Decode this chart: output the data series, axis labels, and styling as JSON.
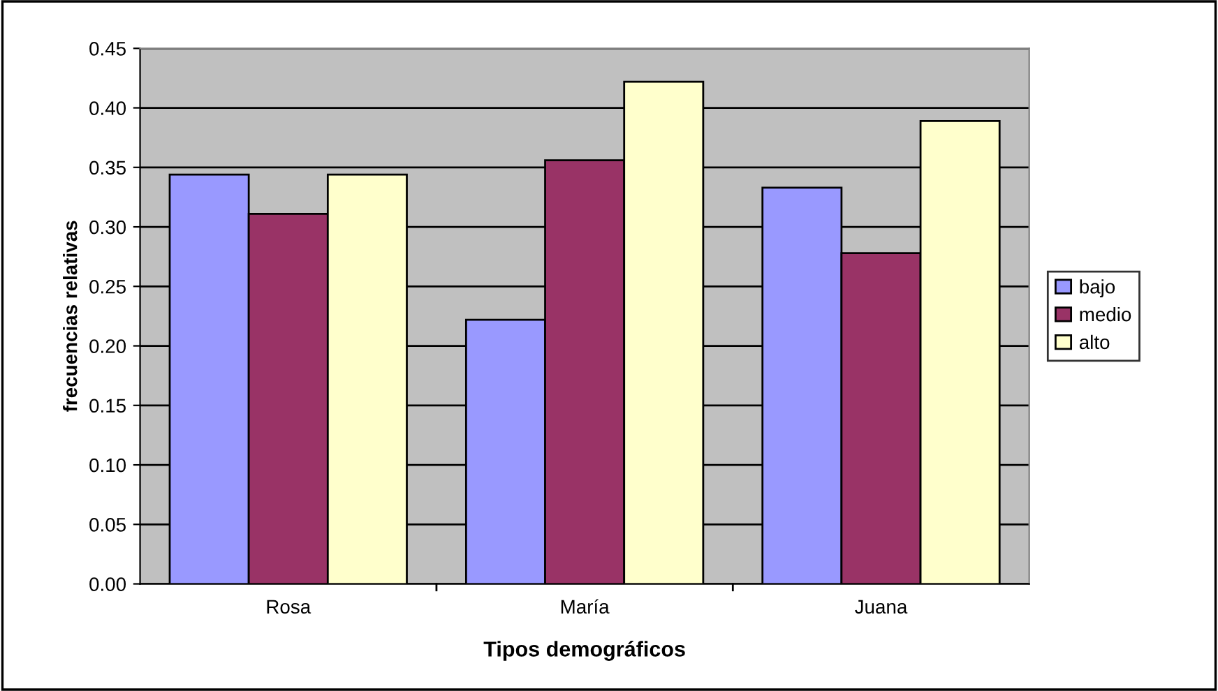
{
  "chart_data": {
    "type": "bar",
    "xlabel": "Tipos demográficos",
    "ylabel": "frecuencias relativas",
    "categories": [
      "Rosa",
      "María",
      "Juana"
    ],
    "series": [
      {
        "name": "bajo",
        "color": "#9999ff",
        "values": [
          0.344,
          0.222,
          0.333
        ]
      },
      {
        "name": "medio",
        "color": "#993366",
        "values": [
          0.311,
          0.356,
          0.278
        ]
      },
      {
        "name": "alto",
        "color": "#ffffcc",
        "values": [
          0.344,
          0.422,
          0.389
        ]
      }
    ],
    "ylim": [
      0,
      0.45
    ],
    "yticks": [
      {
        "value": 0,
        "label": "0.00"
      },
      {
        "value": 0.05,
        "label": "0.05"
      },
      {
        "value": 0.1,
        "label": "0.10"
      },
      {
        "value": 0.15,
        "label": "0.15"
      },
      {
        "value": 0.2,
        "label": "0.20"
      },
      {
        "value": 0.25,
        "label": "0.25"
      },
      {
        "value": 0.3,
        "label": "0.30"
      },
      {
        "value": 0.35,
        "label": "0.35"
      },
      {
        "value": 0.4,
        "label": "0.40"
      },
      {
        "value": 0.45,
        "label": "0.45"
      }
    ],
    "grid": "y",
    "legend": "right"
  }
}
